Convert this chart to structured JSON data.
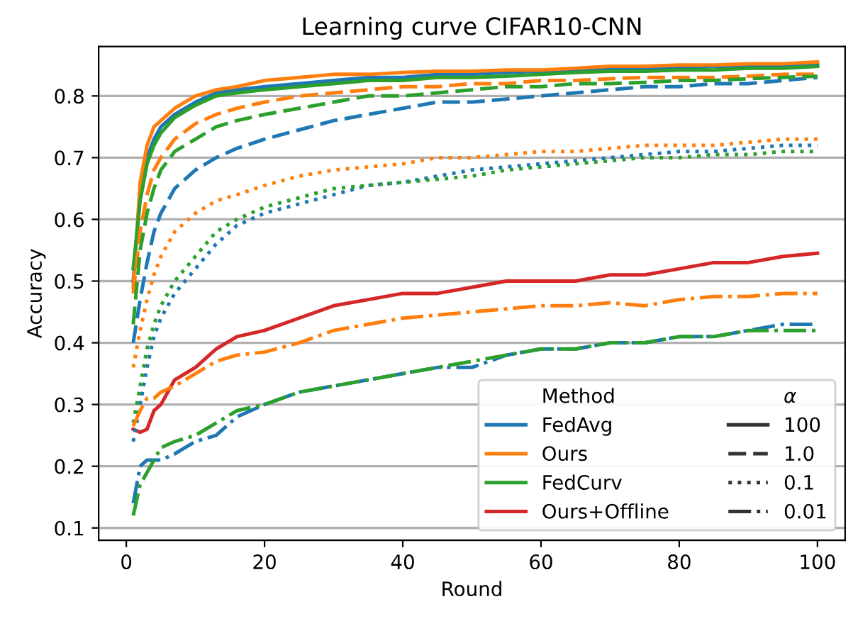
{
  "chart_data": {
    "type": "line",
    "title": "Learning curve CIFAR10-CNN",
    "xlabel": "Round",
    "ylabel": "Accuracy",
    "legend_title": "Method",
    "annotations": [
      "α",
      "100",
      "1.0",
      "0.1",
      "0.01"
    ],
    "x": [
      1,
      2,
      3,
      4,
      5,
      7,
      10,
      13,
      16,
      20,
      25,
      30,
      35,
      40,
      45,
      50,
      55,
      60,
      65,
      70,
      75,
      80,
      85,
      90,
      95,
      100
    ],
    "series": [
      {
        "name": "FedAvg",
        "color": "#1f77b4",
        "line_style": "solid",
        "values": [
          0.5,
          0.64,
          0.7,
          0.73,
          0.75,
          0.77,
          0.79,
          0.805,
          0.81,
          0.815,
          0.82,
          0.825,
          0.83,
          0.83,
          0.835,
          0.835,
          0.838,
          0.84,
          0.84,
          0.845,
          0.845,
          0.845,
          0.848,
          0.848,
          0.85,
          0.85
        ]
      },
      {
        "name": "Ours",
        "color": "#ff7f0e",
        "line_style": "solid",
        "values": [
          0.49,
          0.66,
          0.72,
          0.75,
          0.76,
          0.78,
          0.8,
          0.81,
          0.815,
          0.825,
          0.83,
          0.835,
          0.835,
          0.838,
          0.84,
          0.84,
          0.842,
          0.842,
          0.845,
          0.848,
          0.848,
          0.85,
          0.85,
          0.852,
          0.852,
          0.855
        ]
      },
      {
        "name": "FedCurv",
        "color": "#2ca02c",
        "line_style": "solid",
        "values": [
          0.52,
          0.63,
          0.69,
          0.72,
          0.74,
          0.765,
          0.785,
          0.8,
          0.805,
          0.81,
          0.815,
          0.82,
          0.825,
          0.825,
          0.83,
          0.83,
          0.832,
          0.835,
          0.838,
          0.84,
          0.84,
          0.842,
          0.842,
          0.845,
          0.845,
          0.848
        ]
      },
      {
        "name": "Ours+Offline",
        "color": "#d62728",
        "line_style": "solid",
        "values": [
          0.26,
          0.255,
          0.26,
          0.29,
          0.3,
          0.34,
          0.36,
          0.39,
          0.41,
          0.42,
          0.44,
          0.46,
          0.47,
          0.48,
          0.48,
          0.49,
          0.5,
          0.5,
          0.5,
          0.51,
          0.51,
          0.52,
          0.53,
          0.53,
          0.54,
          0.545
        ]
      },
      {
        "color": "#1f77b4",
        "line_style": "dashed",
        "values": [
          0.4,
          0.47,
          0.53,
          0.58,
          0.61,
          0.65,
          0.68,
          0.7,
          0.715,
          0.73,
          0.745,
          0.76,
          0.77,
          0.78,
          0.79,
          0.79,
          0.795,
          0.8,
          0.805,
          0.81,
          0.815,
          0.815,
          0.82,
          0.82,
          0.825,
          0.83
        ]
      },
      {
        "color": "#ff7f0e",
        "line_style": "dashed",
        "values": [
          0.48,
          0.58,
          0.64,
          0.68,
          0.7,
          0.73,
          0.755,
          0.77,
          0.78,
          0.79,
          0.8,
          0.805,
          0.81,
          0.815,
          0.815,
          0.82,
          0.82,
          0.825,
          0.825,
          0.828,
          0.83,
          0.83,
          0.83,
          0.832,
          0.835,
          0.835
        ]
      },
      {
        "color": "#2ca02c",
        "line_style": "dashed",
        "values": [
          0.43,
          0.55,
          0.61,
          0.65,
          0.68,
          0.71,
          0.73,
          0.75,
          0.76,
          0.77,
          0.78,
          0.79,
          0.8,
          0.8,
          0.805,
          0.81,
          0.815,
          0.815,
          0.82,
          0.82,
          0.822,
          0.825,
          0.825,
          0.828,
          0.83,
          0.832
        ]
      },
      {
        "color": "#1f77b4",
        "line_style": "dotted",
        "values": [
          0.24,
          0.3,
          0.36,
          0.41,
          0.44,
          0.48,
          0.52,
          0.56,
          0.59,
          0.61,
          0.625,
          0.64,
          0.655,
          0.66,
          0.67,
          0.68,
          0.685,
          0.69,
          0.695,
          0.7,
          0.705,
          0.71,
          0.71,
          0.715,
          0.72,
          0.72
        ]
      },
      {
        "color": "#ff7f0e",
        "line_style": "dotted",
        "values": [
          0.36,
          0.42,
          0.47,
          0.51,
          0.54,
          0.58,
          0.61,
          0.63,
          0.64,
          0.655,
          0.67,
          0.68,
          0.685,
          0.69,
          0.7,
          0.7,
          0.705,
          0.71,
          0.71,
          0.715,
          0.72,
          0.72,
          0.72,
          0.725,
          0.73,
          0.73
        ]
      },
      {
        "color": "#2ca02c",
        "line_style": "dotted",
        "values": [
          0.27,
          0.33,
          0.39,
          0.43,
          0.46,
          0.5,
          0.54,
          0.58,
          0.6,
          0.62,
          0.635,
          0.65,
          0.655,
          0.66,
          0.665,
          0.67,
          0.68,
          0.685,
          0.69,
          0.695,
          0.7,
          0.7,
          0.705,
          0.705,
          0.71,
          0.71
        ]
      },
      {
        "color": "#1f77b4",
        "line_style": "dashdot",
        "values": [
          0.14,
          0.2,
          0.21,
          0.21,
          0.21,
          0.22,
          0.24,
          0.25,
          0.28,
          0.3,
          0.32,
          0.33,
          0.34,
          0.35,
          0.36,
          0.36,
          0.38,
          0.39,
          0.39,
          0.4,
          0.4,
          0.41,
          0.41,
          0.42,
          0.43,
          0.43
        ]
      },
      {
        "color": "#ff7f0e",
        "line_style": "dashdot",
        "values": [
          0.265,
          0.29,
          0.31,
          0.31,
          0.32,
          0.33,
          0.35,
          0.37,
          0.38,
          0.385,
          0.4,
          0.42,
          0.43,
          0.44,
          0.445,
          0.45,
          0.455,
          0.46,
          0.46,
          0.465,
          0.46,
          0.47,
          0.475,
          0.475,
          0.48,
          0.48
        ]
      },
      {
        "color": "#2ca02c",
        "line_style": "dashdot",
        "values": [
          0.12,
          0.17,
          0.19,
          0.21,
          0.23,
          0.24,
          0.25,
          0.27,
          0.29,
          0.3,
          0.32,
          0.33,
          0.34,
          0.35,
          0.36,
          0.37,
          0.38,
          0.39,
          0.39,
          0.4,
          0.4,
          0.41,
          0.41,
          0.42,
          0.42,
          0.42
        ]
      }
    ],
    "xlim": [
      -4,
      104
    ],
    "ylim": [
      0.08,
      0.88
    ],
    "xticks": [
      0,
      20,
      40,
      60,
      80,
      100
    ],
    "yticks": [
      0.1,
      0.2,
      0.3,
      0.4,
      0.5,
      0.6,
      0.7,
      0.8
    ],
    "grid": "y",
    "legend": "bottom right"
  }
}
